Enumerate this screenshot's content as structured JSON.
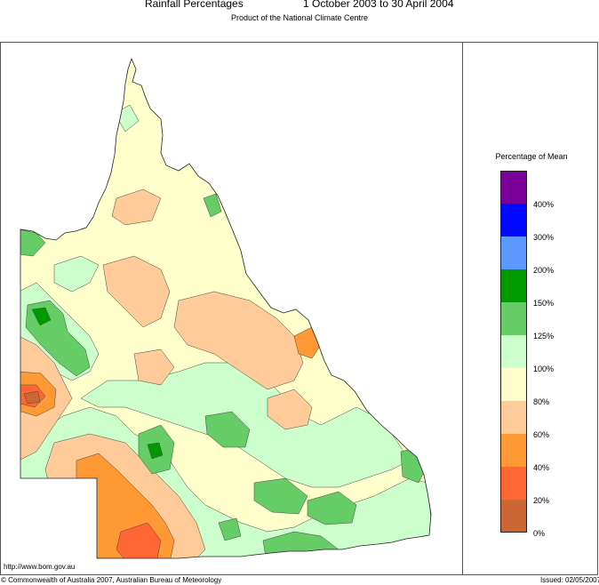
{
  "header": {
    "title_left": "Rainfall Percentages",
    "title_right": "1 October 2003 to 30 April 2004",
    "subtitle": "Product of the National Climate Centre"
  },
  "legend": {
    "title": "Percentage of Mean",
    "bands": [
      {
        "color": "#7b0099"
      },
      {
        "color": "#0008ff"
      },
      {
        "color": "#5c99ff"
      },
      {
        "color": "#009900"
      },
      {
        "color": "#66cc66"
      },
      {
        "color": "#ccffcc"
      },
      {
        "color": "#ffffcc"
      },
      {
        "color": "#ffcc99"
      },
      {
        "color": "#ff9933"
      },
      {
        "color": "#ff6633"
      },
      {
        "color": "#cc6633"
      }
    ],
    "ticks": [
      "400%",
      "300%",
      "200%",
      "150%",
      "125%",
      "100%",
      "80%",
      "60%",
      "40%",
      "20%",
      "0%"
    ]
  },
  "footer": {
    "url": "http://www.bom.gov.au",
    "copyright": "© Commonwealth of Australia 2007, Australian Bureau of Meteorology",
    "issued": "Issued: 02/05/2007"
  }
}
